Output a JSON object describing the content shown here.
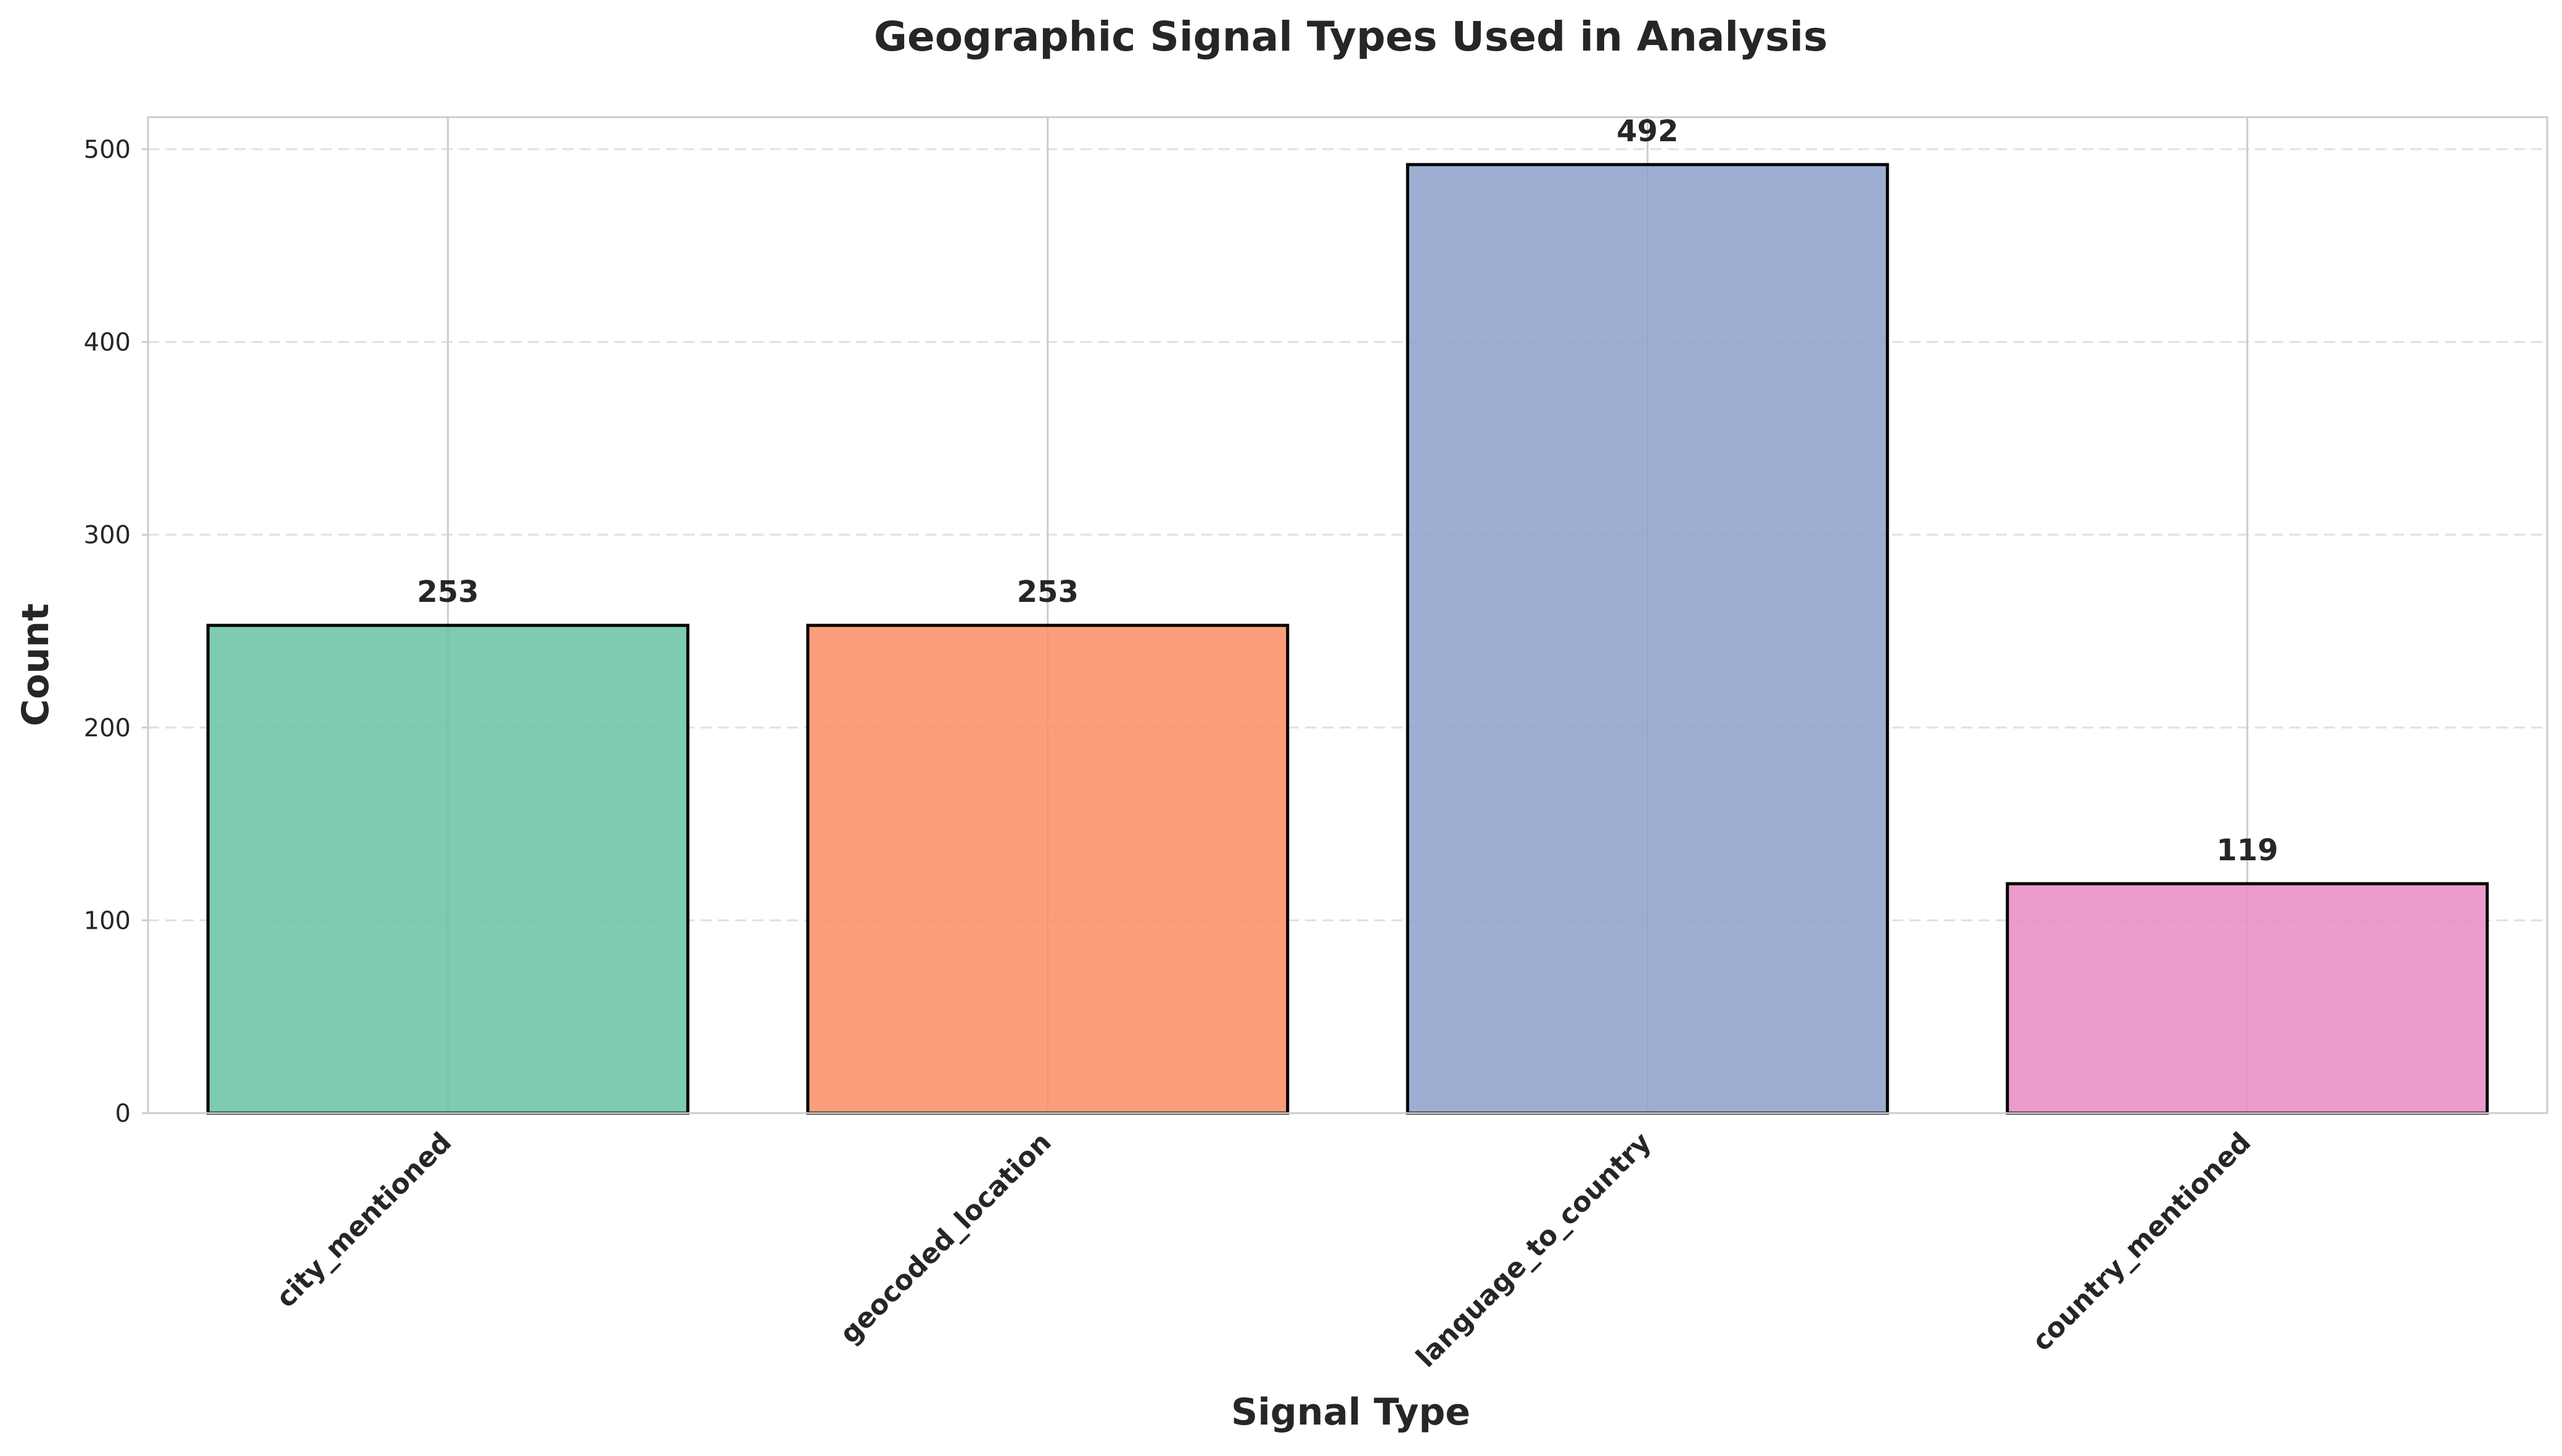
{
  "chart_data": {
    "type": "bar",
    "title": "Geographic Signal Types Used in Analysis",
    "xlabel": "Signal Type",
    "ylabel": "Count",
    "categories": [
      "city_mentioned",
      "geocoded_location",
      "language_to_country",
      "country_mentioned"
    ],
    "values": [
      253,
      253,
      492,
      119
    ],
    "data_labels": [
      "253",
      "253",
      "492",
      "119"
    ],
    "colors": [
      "#66c2a5",
      "#fc8d62",
      "#8da0cb",
      "#e78ac3"
    ],
    "ylim": [
      0,
      516.6
    ],
    "yticks": [
      0,
      100,
      200,
      300,
      400,
      500
    ],
    "ytick_labels": [
      "0",
      "100",
      "200",
      "300",
      "400",
      "500"
    ],
    "grid": true,
    "xtick_rotation": -45
  }
}
